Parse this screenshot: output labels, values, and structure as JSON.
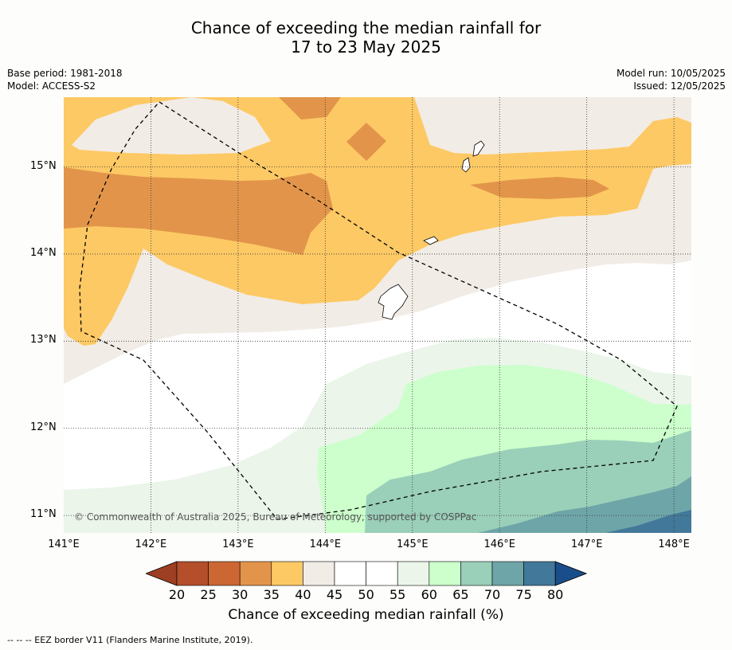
{
  "title": {
    "line1": "Chance of exceeding the median rainfall for",
    "line2": "17 to 23 May 2025"
  },
  "meta_left": {
    "base_period": "Base period: 1981-2018",
    "model": "Model: ACCESS-S2"
  },
  "meta_right": {
    "model_run": "Model run: 10/05/2025",
    "issued": "Issued: 12/05/2025"
  },
  "map": {
    "lon_range": [
      141.0,
      148.2
    ],
    "lat_range": [
      10.8,
      15.8
    ],
    "lon_ticks": [
      {
        "value": 141,
        "label": "141°E"
      },
      {
        "value": 142,
        "label": "142°E"
      },
      {
        "value": 143,
        "label": "143°E"
      },
      {
        "value": 144,
        "label": "144°E"
      },
      {
        "value": 145,
        "label": "145°E"
      },
      {
        "value": 146,
        "label": "146°E"
      },
      {
        "value": 147,
        "label": "147°E"
      },
      {
        "value": 148,
        "label": "148°E"
      }
    ],
    "lat_ticks": [
      {
        "value": 15,
        "label": "15°N"
      },
      {
        "value": 14,
        "label": "14°N"
      },
      {
        "value": 13,
        "label": "13°N"
      },
      {
        "value": 12,
        "label": "12°N"
      },
      {
        "value": 11,
        "label": "11°N"
      }
    ],
    "copyright": "© Commonwealth of Australia 2025, Bureau of Meteorology, supported by COSPPac",
    "grid": "dotted"
  },
  "colorbar": {
    "label": "Chance of exceeding median rainfall (%)",
    "ticks": [
      "20",
      "25",
      "30",
      "35",
      "40",
      "45",
      "50",
      "55",
      "60",
      "65",
      "70",
      "75",
      "80"
    ],
    "colors": [
      "#b44e2b",
      "#cc6633",
      "#e2954a",
      "#fdc964",
      "#f2ece6",
      "#ffffff",
      "#ffffff",
      "#ebf5ea",
      "#ccffcc",
      "#9acfb9",
      "#6ea5a8",
      "#42799a"
    ],
    "under_color": "#9c3f22",
    "over_color": "#1a4e8a"
  },
  "footer": "--  --  -- EEZ border V11 (Flanders Marine Institute, 2019)."
}
